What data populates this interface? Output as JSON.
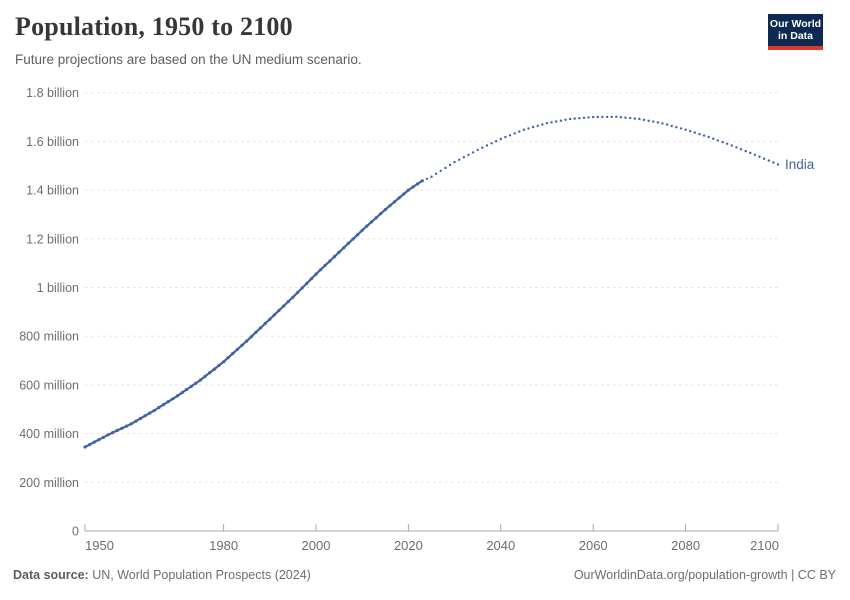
{
  "header": {
    "title": "Population, 1950 to 2100",
    "subtitle": "Future projections are based on the UN medium scenario."
  },
  "logo": {
    "line1": "Our World",
    "line2": "in Data",
    "bg_color": "#0c2a52",
    "accent_color": "#dc392c"
  },
  "footer": {
    "source_label": "Data source:",
    "source_text": " UN, World Population Prospects (2024)",
    "right_text": "OurWorldinData.org/population-growth | CC BY"
  },
  "chart_data": {
    "type": "line",
    "title": "Population, 1950 to 2100",
    "subtitle": "Future projections are based on the UN medium scenario.",
    "entity_label": "India",
    "unit": "billion people",
    "xlabel": "",
    "ylabel": "",
    "xlim": [
      1950,
      2100
    ],
    "ylim": [
      0,
      1.8
    ],
    "grid": "horizontal-dashed",
    "legend_position": "end-of-line-label",
    "x_ticks": [
      1950,
      1980,
      2000,
      2020,
      2040,
      2060,
      2080,
      2100
    ],
    "y_ticks": [
      {
        "value": 0,
        "label": "0"
      },
      {
        "value": 0.2,
        "label": "200 million"
      },
      {
        "value": 0.4,
        "label": "400 million"
      },
      {
        "value": 0.6,
        "label": "600 million"
      },
      {
        "value": 0.8,
        "label": "800 million"
      },
      {
        "value": 1,
        "label": "1 billion"
      },
      {
        "value": 1.2,
        "label": "1.2 billion"
      },
      {
        "value": 1.4,
        "label": "1.4 billion"
      },
      {
        "value": 1.6,
        "label": "1.6 billion"
      },
      {
        "value": 1.8,
        "label": "1.8 billion"
      }
    ],
    "line_color": "#3f63a3",
    "gridline_color": "#e2e2e2",
    "axis_color": "#a8a8a8",
    "tick_label_color": "#6e6e6e",
    "series": [
      {
        "name": "India (observed)",
        "style": "solid",
        "points": [
          [
            1950,
            0.345
          ],
          [
            1955,
            0.395
          ],
          [
            1960,
            0.44
          ],
          [
            1965,
            0.495
          ],
          [
            1970,
            0.555
          ],
          [
            1975,
            0.62
          ],
          [
            1980,
            0.695
          ],
          [
            1985,
            0.78
          ],
          [
            1990,
            0.87
          ],
          [
            1995,
            0.96
          ],
          [
            2000,
            1.055
          ],
          [
            2005,
            1.145
          ],
          [
            2010,
            1.235
          ],
          [
            2015,
            1.32
          ],
          [
            2020,
            1.4
          ],
          [
            2023,
            1.438
          ]
        ]
      },
      {
        "name": "India (UN medium projection)",
        "style": "dotted",
        "points": [
          [
            2023,
            1.438
          ],
          [
            2025,
            1.455
          ],
          [
            2030,
            1.515
          ],
          [
            2035,
            1.565
          ],
          [
            2040,
            1.61
          ],
          [
            2045,
            1.648
          ],
          [
            2050,
            1.675
          ],
          [
            2055,
            1.692
          ],
          [
            2060,
            1.7
          ],
          [
            2065,
            1.701
          ],
          [
            2070,
            1.692
          ],
          [
            2075,
            1.674
          ],
          [
            2080,
            1.648
          ],
          [
            2085,
            1.618
          ],
          [
            2090,
            1.583
          ],
          [
            2095,
            1.545
          ],
          [
            2100,
            1.505
          ]
        ]
      }
    ]
  }
}
